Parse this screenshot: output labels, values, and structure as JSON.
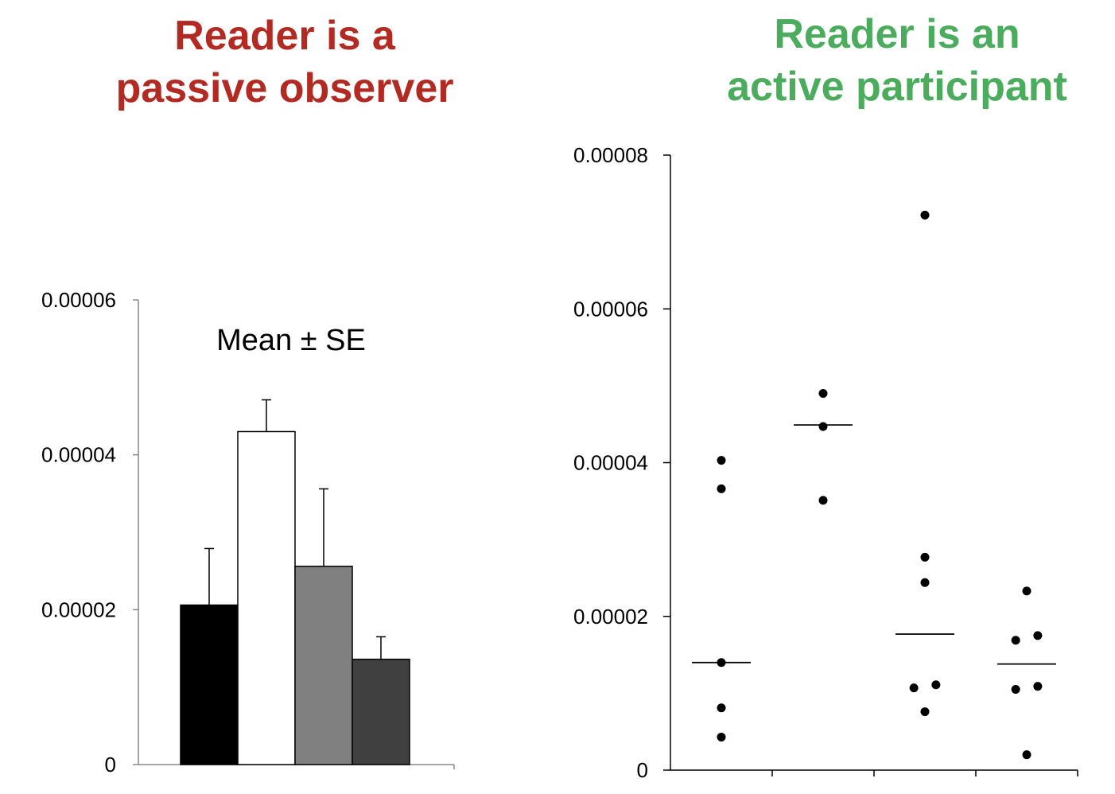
{
  "colors": {
    "passive": "#b22a22",
    "active": "#4aac5c"
  },
  "chart_data": [
    {
      "type": "bar",
      "title": "Reader is a passive observer",
      "title_lines": [
        "Reader is a",
        "passive observer"
      ],
      "annotation": "Mean ± SE",
      "ylim": [
        0,
        6e-05
      ],
      "yticks": [
        0,
        2e-05,
        4e-05,
        6e-05
      ],
      "ytick_labels": [
        "0",
        "0.00002",
        "0.00004",
        "0.00006"
      ],
      "grid": false,
      "bars": [
        {
          "value": 2.06e-05,
          "error": 7.3e-06,
          "fill": "#000000"
        },
        {
          "value": 4.3e-05,
          "error": 4.1e-06,
          "fill": "#ffffff"
        },
        {
          "value": 2.56e-05,
          "error": 1e-05,
          "fill": "#808080"
        },
        {
          "value": 1.36e-05,
          "error": 2.9e-06,
          "fill": "#404040"
        }
      ]
    },
    {
      "type": "scatter",
      "title": "Reader is an active participant",
      "title_lines": [
        "Reader is an",
        "active participant"
      ],
      "ylim": [
        0,
        8e-05
      ],
      "yticks": [
        0,
        2e-05,
        4e-05,
        6e-05,
        8e-05
      ],
      "ytick_labels": [
        "0",
        "0.00002",
        "0.00004",
        "0.00006",
        "0.00008"
      ],
      "grid": false,
      "groups": [
        {
          "points": [
            4.03e-05,
            3.66e-05,
            1.4e-05,
            8.1e-06,
            4.3e-06
          ],
          "offsets": [
            0,
            0,
            0,
            0,
            0
          ],
          "center": 1.4e-05
        },
        {
          "points": [
            4.9e-05,
            4.47e-05,
            3.51e-05
          ],
          "offsets": [
            0,
            0,
            0
          ],
          "center": 4.49e-05
        },
        {
          "points": [
            7.22e-05,
            2.77e-05,
            2.44e-05,
            1.11e-05,
            1.07e-05,
            7.6e-06
          ],
          "offsets": [
            0,
            0,
            0,
            0.33,
            -0.33,
            0
          ],
          "center": 1.77e-05
        },
        {
          "points": [
            2.33e-05,
            1.75e-05,
            1.69e-05,
            1.09e-05,
            1.05e-05,
            2e-06
          ],
          "offsets": [
            0,
            0.33,
            -0.33,
            0.33,
            -0.33,
            0
          ],
          "center": 1.38e-05
        }
      ]
    }
  ]
}
